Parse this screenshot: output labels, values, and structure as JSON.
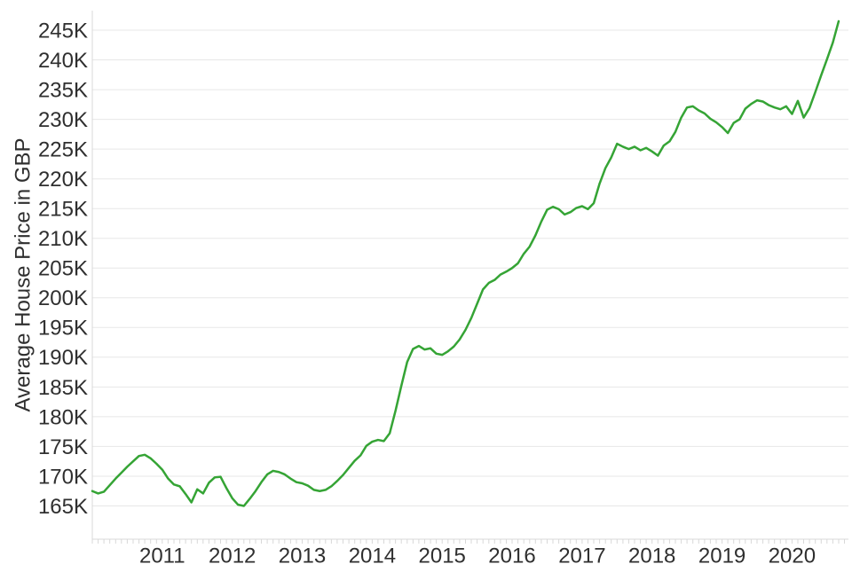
{
  "figure": {
    "background": "#ffffff",
    "text_color": "#2f2f2f",
    "grid_color": "#e7e7e7",
    "axis_line_color": "#d8d8d8",
    "line_color": "#35a435"
  },
  "chart_data": {
    "type": "line",
    "title": "",
    "xlabel": "",
    "ylabel": "Average House Price in GBP",
    "legend": "none",
    "grid": "horizontal",
    "unit": "GBP thousands (K)",
    "x_tick_labels": [
      "2011",
      "2012",
      "2013",
      "2014",
      "2015",
      "2016",
      "2017",
      "2018",
      "2019",
      "2020"
    ],
    "y_tick_labels": [
      "165K",
      "170K",
      "175K",
      "180K",
      "185K",
      "190K",
      "195K",
      "200K",
      "205K",
      "210K",
      "215K",
      "220K",
      "225K",
      "230K",
      "235K",
      "240K",
      "245K"
    ],
    "y_tick_values_k": [
      165,
      170,
      175,
      180,
      185,
      190,
      195,
      200,
      205,
      210,
      215,
      220,
      225,
      230,
      235,
      240,
      245
    ],
    "ylim_k": [
      159.5,
      248.3
    ],
    "start_year": 2010,
    "start_month": 1,
    "interval": "month",
    "series": [
      {
        "values_k": [
          167.5,
          167.1,
          167.4,
          168.5,
          169.6,
          170.6,
          171.6,
          172.5,
          173.4,
          173.6,
          173.0,
          172.1,
          171.1,
          169.6,
          168.6,
          168.3,
          167.0,
          165.6,
          167.8,
          167.1,
          168.9,
          169.8,
          169.9,
          168.0,
          166.3,
          165.2,
          165.0,
          166.2,
          167.5,
          169.0,
          170.3,
          170.9,
          170.7,
          170.3,
          169.6,
          169.0,
          168.8,
          168.4,
          167.7,
          167.5,
          167.7,
          168.3,
          169.2,
          170.2,
          171.4,
          172.6,
          173.5,
          175.1,
          175.8,
          176.1,
          175.9,
          177.2,
          181.0,
          185.2,
          189.2,
          191.4,
          191.9,
          191.3,
          191.5,
          190.6,
          190.4,
          191.0,
          191.8,
          193.0,
          194.6,
          196.6,
          199.0,
          201.4,
          202.5,
          203.0,
          203.9,
          204.4,
          205.0,
          205.8,
          207.4,
          208.6,
          210.5,
          212.8,
          214.8,
          215.3,
          214.9,
          214.0,
          214.4,
          215.1,
          215.4,
          214.9,
          215.9,
          219.2,
          221.8,
          223.6,
          225.9,
          225.4,
          225.0,
          225.4,
          224.8,
          225.2,
          224.6,
          223.9,
          225.6,
          226.3,
          227.9,
          230.3,
          232.0,
          232.2,
          231.5,
          231.0,
          230.1,
          229.5,
          228.7,
          227.7,
          229.4,
          230.0,
          231.8,
          232.6,
          233.2,
          233.0,
          232.4,
          232.0,
          231.7,
          232.2,
          230.9,
          233.1,
          230.3,
          231.9,
          234.6,
          237.4,
          240.1,
          242.9,
          246.5
        ]
      }
    ]
  }
}
